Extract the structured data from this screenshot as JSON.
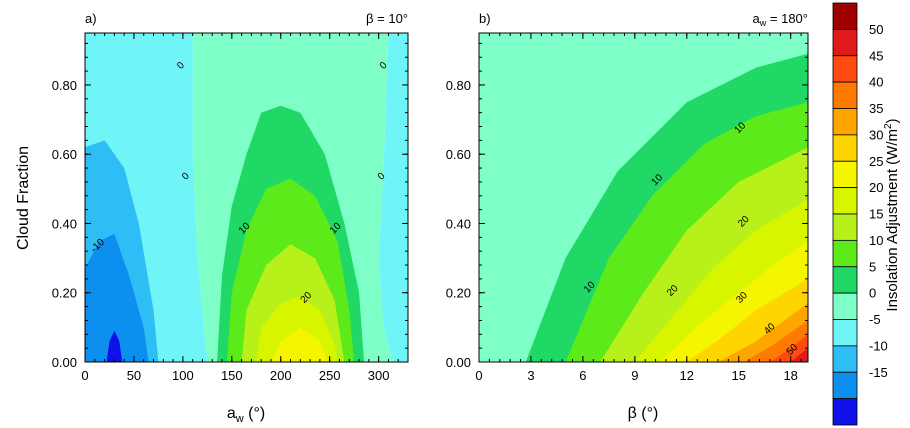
{
  "chart_data": [
    {
      "type": "contour",
      "panel_label": "a)",
      "annotation": "β = 10°",
      "ylabel": "Cloud Fraction",
      "xlabel": "a_w (°)",
      "xlabel_main": "a",
      "xlabel_sub": "w",
      "xlabel_unit": " (°)",
      "xlim": [
        0,
        330
      ],
      "ylim": [
        0,
        0.95
      ],
      "xticks": [
        "0",
        "50",
        "100",
        "150",
        "200",
        "250",
        "300"
      ],
      "xtick_values": [
        0,
        50,
        100,
        150,
        200,
        250,
        300
      ],
      "yticks": [
        "0.00",
        "0.20",
        "0.40",
        "0.60",
        "0.80"
      ],
      "ytick_values": [
        0,
        0.2,
        0.4,
        0.6,
        0.8
      ],
      "contour_labels": [
        {
          "text": "0",
          "x": 100,
          "y": 0.85
        },
        {
          "text": "0",
          "x": 307,
          "y": 0.85
        },
        {
          "text": "0",
          "x": 105,
          "y": 0.53
        },
        {
          "text": "0",
          "x": 305,
          "y": 0.53
        },
        {
          "text": "-10",
          "x": 15,
          "y": 0.33
        },
        {
          "text": "10",
          "x": 165,
          "y": 0.38
        },
        {
          "text": "10",
          "x": 258,
          "y": 0.38
        },
        {
          "text": "20",
          "x": 228,
          "y": 0.18
        }
      ],
      "regions": [
        {
          "level": "0 to 5",
          "color": "#7FFFC8",
          "boundary": [
            [
              110,
              0.95
            ],
            [
              310,
              0.95
            ],
            [
              305,
              0.55
            ],
            [
              300,
              0.3
            ],
            [
              305,
              0.1
            ],
            [
              315,
              0
            ],
            [
              125,
              0
            ],
            [
              115,
              0.3
            ],
            [
              110,
              0.6
            ]
          ]
        },
        {
          "level": "-5 to 0",
          "color": "#6FF5F7",
          "boundary": [
            [
              0,
              0.95
            ],
            [
              110,
              0.95
            ],
            [
              110,
              0.6
            ],
            [
              115,
              0.3
            ],
            [
              125,
              0
            ],
            [
              0,
              0
            ]
          ]
        },
        {
          "level": "-5 to 0",
          "color": "#6FF5F7",
          "boundary": [
            [
              310,
              0.95
            ],
            [
              330,
              0.95
            ],
            [
              330,
              0
            ],
            [
              315,
              0
            ],
            [
              305,
              0.1
            ],
            [
              300,
              0.3
            ],
            [
              305,
              0.55
            ]
          ]
        },
        {
          "level": "-10 to -5",
          "color": "#2FBDF5",
          "boundary": [
            [
              0,
              0.62
            ],
            [
              20,
              0.64
            ],
            [
              40,
              0.56
            ],
            [
              55,
              0.4
            ],
            [
              70,
              0.15
            ],
            [
              75,
              0
            ],
            [
              0,
              0
            ]
          ]
        },
        {
          "level": "-15 to -10",
          "color": "#0D8FF0",
          "boundary": [
            [
              0,
              0.27
            ],
            [
              15,
              0.35
            ],
            [
              30,
              0.37
            ],
            [
              45,
              0.25
            ],
            [
              60,
              0.1
            ],
            [
              65,
              0
            ],
            [
              0,
              0
            ]
          ]
        },
        {
          "level": "< -15",
          "color": "#1010E8",
          "boundary": [
            [
              22,
              0
            ],
            [
              25,
              0.06
            ],
            [
              30,
              0.09
            ],
            [
              35,
              0.06
            ],
            [
              38,
              0
            ]
          ]
        },
        {
          "level": "5 to 10",
          "color": "#1FD865",
          "boundary": [
            [
              135,
              0
            ],
            [
              140,
              0.25
            ],
            [
              150,
              0.45
            ],
            [
              165,
              0.6
            ],
            [
              180,
              0.72
            ],
            [
              200,
              0.74
            ],
            [
              220,
              0.72
            ],
            [
              245,
              0.6
            ],
            [
              265,
              0.4
            ],
            [
              280,
              0.2
            ],
            [
              285,
              0
            ]
          ]
        },
        {
          "level": "10 to 15",
          "color": "#5CEA1A",
          "boundary": [
            [
              145,
              0
            ],
            [
              150,
              0.2
            ],
            [
              165,
              0.38
            ],
            [
              185,
              0.5
            ],
            [
              210,
              0.53
            ],
            [
              235,
              0.48
            ],
            [
              258,
              0.35
            ],
            [
              270,
              0.15
            ],
            [
              275,
              0
            ]
          ]
        },
        {
          "level": "15 to 20",
          "color": "#B8F01A",
          "boundary": [
            [
              160,
              0
            ],
            [
              165,
              0.15
            ],
            [
              185,
              0.28
            ],
            [
              210,
              0.34
            ],
            [
              235,
              0.3
            ],
            [
              255,
              0.18
            ],
            [
              265,
              0
            ]
          ]
        },
        {
          "level": "20 to 25",
          "color": "#D8F500",
          "boundary": [
            [
              175,
              0
            ],
            [
              180,
              0.1
            ],
            [
              200,
              0.17
            ],
            [
              220,
              0.19
            ],
            [
              240,
              0.15
            ],
            [
              255,
              0.05
            ],
            [
              258,
              0
            ]
          ]
        },
        {
          "level": "25 to 30",
          "color": "#F5F500",
          "boundary": [
            [
              190,
              0
            ],
            [
              200,
              0.06
            ],
            [
              220,
              0.1
            ],
            [
              240,
              0.06
            ],
            [
              248,
              0
            ]
          ]
        }
      ]
    },
    {
      "type": "contour",
      "panel_label": "b)",
      "annotation": "a_w = 180°",
      "annotation_main": "a",
      "annotation_sub": "w",
      "annotation_rest": " = 180°",
      "xlabel": "β (°)",
      "xlim": [
        0,
        19
      ],
      "ylim": [
        0,
        0.95
      ],
      "xticks": [
        "0",
        "3",
        "6",
        "9",
        "12",
        "15",
        "18"
      ],
      "xtick_values": [
        0,
        3,
        6,
        9,
        12,
        15,
        18
      ],
      "yticks": [
        "0.00",
        "0.20",
        "0.40",
        "0.60",
        "0.80"
      ],
      "ytick_values": [
        0,
        0.2,
        0.4,
        0.6,
        0.8
      ],
      "contour_labels": [
        {
          "text": "10",
          "x": 15.2,
          "y": 0.67
        },
        {
          "text": "10",
          "x": 10.4,
          "y": 0.52
        },
        {
          "text": "10",
          "x": 6.5,
          "y": 0.21
        },
        {
          "text": "20",
          "x": 15.4,
          "y": 0.4
        },
        {
          "text": "20",
          "x": 11.3,
          "y": 0.2
        },
        {
          "text": "30",
          "x": 15.3,
          "y": 0.18
        },
        {
          "text": "40",
          "x": 16.9,
          "y": 0.09
        },
        {
          "text": "50",
          "x": 18.2,
          "y": 0.03
        }
      ],
      "regions": [
        {
          "level": "0 to 5",
          "color": "#7FFFC8",
          "boundary": [
            [
              0,
              0
            ],
            [
              0,
              0.95
            ],
            [
              19,
              0.95
            ],
            [
              19,
              0
            ]
          ]
        },
        {
          "level": "5 to 10",
          "color": "#1FD865",
          "boundary": [
            [
              2.7,
              0
            ],
            [
              5,
              0.3
            ],
            [
              8,
              0.55
            ],
            [
              12,
              0.75
            ],
            [
              16,
              0.85
            ],
            [
              19,
              0.89
            ],
            [
              19,
              0
            ]
          ]
        },
        {
          "level": "10 to 15",
          "color": "#5CEA1A",
          "boundary": [
            [
              5,
              0
            ],
            [
              7.5,
              0.3
            ],
            [
              10,
              0.48
            ],
            [
              13,
              0.63
            ],
            [
              16,
              0.71
            ],
            [
              19,
              0.75
            ],
            [
              19,
              0
            ]
          ]
        },
        {
          "level": "15 to 20",
          "color": "#B8F01A",
          "boundary": [
            [
              7,
              0
            ],
            [
              9.5,
              0.2
            ],
            [
              12,
              0.38
            ],
            [
              15,
              0.52
            ],
            [
              19,
              0.62
            ],
            [
              19,
              0
            ]
          ]
        },
        {
          "level": "20 to 25",
          "color": "#D8F500",
          "boundary": [
            [
              9,
              0
            ],
            [
              11,
              0.12
            ],
            [
              13.5,
              0.27
            ],
            [
              16,
              0.38
            ],
            [
              19,
              0.47
            ],
            [
              19,
              0
            ]
          ]
        },
        {
          "level": "25 to 30",
          "color": "#F5F500",
          "boundary": [
            [
              10.5,
              0
            ],
            [
              12.5,
              0.1
            ],
            [
              15,
              0.2
            ],
            [
              17,
              0.28
            ],
            [
              19,
              0.35
            ],
            [
              19,
              0
            ]
          ]
        },
        {
          "level": "30 to 35",
          "color": "#FFD500",
          "boundary": [
            [
              12,
              0
            ],
            [
              14,
              0.07
            ],
            [
              16,
              0.15
            ],
            [
              19,
              0.24
            ],
            [
              19,
              0
            ]
          ]
        },
        {
          "level": "35 to 40",
          "color": "#FFA500",
          "boundary": [
            [
              13.8,
              0
            ],
            [
              16,
              0.06
            ],
            [
              19,
              0.17
            ],
            [
              19,
              0
            ]
          ]
        },
        {
          "level": "40 to 45",
          "color": "#FF7A00",
          "boundary": [
            [
              15.3,
              0
            ],
            [
              17,
              0.05
            ],
            [
              19,
              0.12
            ],
            [
              19,
              0
            ]
          ]
        },
        {
          "level": "45 to 50",
          "color": "#FF4A10",
          "boundary": [
            [
              16.8,
              0
            ],
            [
              18,
              0.04
            ],
            [
              19,
              0.08
            ],
            [
              19,
              0
            ]
          ]
        },
        {
          "level": "> 50",
          "color": "#E01A1A",
          "boundary": [
            [
              18,
              0
            ],
            [
              19,
              0.04
            ],
            [
              19,
              0
            ]
          ]
        }
      ]
    }
  ],
  "colorbar": {
    "label": "Insolation Adjustment (W/m²)",
    "label_main": "Insolation Adjustment (W/m",
    "label_sup": "2",
    "label_end": ")",
    "tick_labels": [
      "50",
      "45",
      "40",
      "35",
      "30",
      "25",
      "20",
      "15",
      "10",
      "5",
      "0",
      "-5",
      "-10",
      "-15"
    ],
    "colors": [
      "#A00000",
      "#E01A1A",
      "#FF4A10",
      "#FF7A00",
      "#FFA500",
      "#FFD500",
      "#F5F500",
      "#D8F500",
      "#B8F01A",
      "#5CEA1A",
      "#1FD865",
      "#7FFFC8",
      "#6FF5F7",
      "#2FBDF5",
      "#0D8FF0",
      "#1010E8"
    ]
  }
}
